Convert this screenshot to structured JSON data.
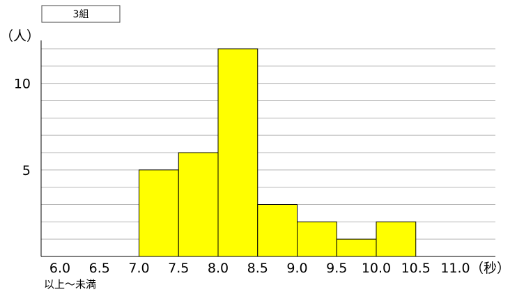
{
  "chart_data": {
    "type": "bar",
    "title": "3組",
    "ylabel": "（人）",
    "xlabel": "（秒）",
    "x_note": "以上〜未満",
    "x_ticks": [
      "6.0",
      "6.5",
      "7.0",
      "7.5",
      "8.0",
      "8.5",
      "9.0",
      "9.5",
      "10.0",
      "10.5",
      "11.0"
    ],
    "y_ticks": [
      "5",
      "10"
    ],
    "bins": [
      {
        "from": 6.0,
        "to": 6.5,
        "value": 0
      },
      {
        "from": 6.5,
        "to": 7.0,
        "value": 0
      },
      {
        "from": 7.0,
        "to": 7.5,
        "value": 5
      },
      {
        "from": 7.5,
        "to": 8.0,
        "value": 6
      },
      {
        "from": 8.0,
        "to": 8.5,
        "value": 12
      },
      {
        "from": 8.5,
        "to": 9.0,
        "value": 3
      },
      {
        "from": 9.0,
        "to": 9.5,
        "value": 2
      },
      {
        "from": 9.5,
        "to": 10.0,
        "value": 1
      },
      {
        "from": 10.0,
        "to": 10.5,
        "value": 2
      },
      {
        "from": 10.5,
        "to": 11.0,
        "value": 0
      }
    ],
    "xlim": [
      6.0,
      11.0
    ],
    "ylim": [
      0,
      12
    ],
    "grid": true,
    "bar_color": "#ffff00"
  }
}
